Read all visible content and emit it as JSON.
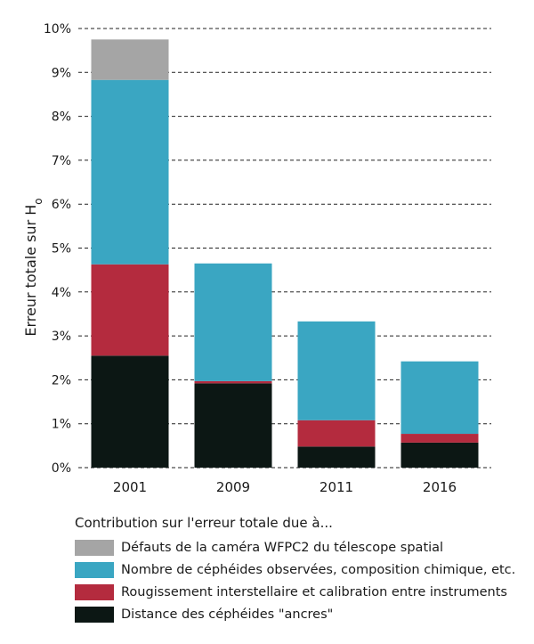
{
  "chart_data": {
    "type": "bar",
    "stacked": true,
    "categories": [
      "2001",
      "2009",
      "2011",
      "2016"
    ],
    "ylabel_main": "Erreur totale sur H",
    "ylabel_sub": "o",
    "ylim": [
      0,
      10
    ],
    "yticks": [
      0,
      1,
      2,
      3,
      4,
      5,
      6,
      7,
      8,
      9,
      10
    ],
    "ytick_labels": [
      "0%",
      "1%",
      "2%",
      "3%",
      "4%",
      "5%",
      "6%",
      "7%",
      "8%",
      "9%",
      "10%"
    ],
    "grid": "horizontal dashed",
    "legend_position": "bottom",
    "series": [
      {
        "name": "Distance des céphéides \"ancres\"",
        "color": "#0c1714",
        "values": [
          2.55,
          1.92,
          0.48,
          0.57
        ]
      },
      {
        "name": "Rougissement interstellaire et calibration entre instruments",
        "color": "#b42b3e",
        "values": [
          2.08,
          0.05,
          0.6,
          0.2
        ]
      },
      {
        "name": "Nombre de céphéides observées, composition chimique, etc.",
        "color": "#3aa6c2",
        "values": [
          4.2,
          2.68,
          2.25,
          1.65
        ]
      },
      {
        "name": "Défauts de la caméra WFPC2 du télescope spatial",
        "color": "#a5a5a5",
        "values": [
          0.92,
          0,
          0,
          0
        ]
      }
    ]
  },
  "legend": {
    "title": "Contribution sur l'erreur totale due à...",
    "items": [
      {
        "label": "Défauts de la caméra WFPC2 du télescope spatial",
        "color": "#a5a5a5"
      },
      {
        "label": "Nombre de céphéides observées, composition chimique, etc.",
        "color": "#3aa6c2"
      },
      {
        "label": "Rougissement interstellaire et calibration entre instruments",
        "color": "#b42b3e"
      },
      {
        "label": "Distance des céphéides \"ancres\"",
        "color": "#0c1714"
      }
    ]
  }
}
